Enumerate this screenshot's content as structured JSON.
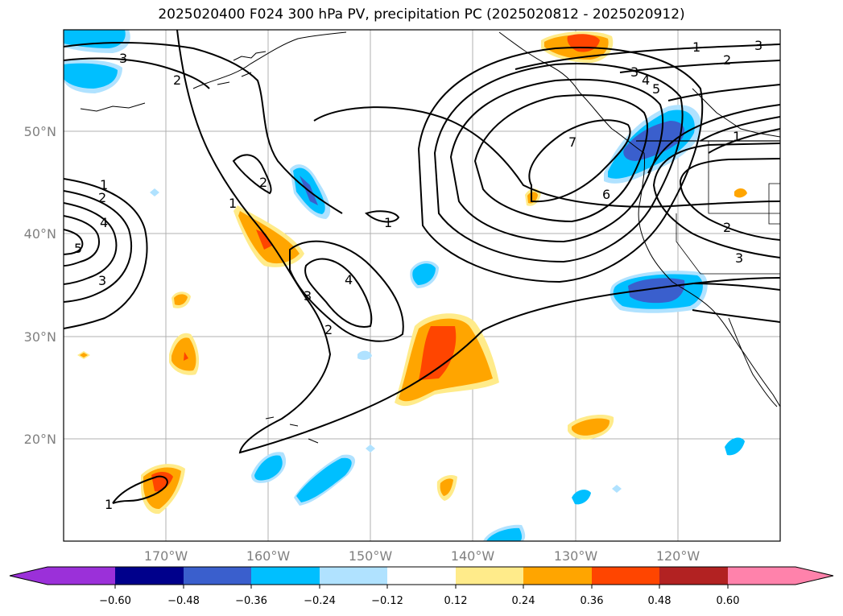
{
  "title": "2025020400 F024 300 hPa PV, precipitation PC (2025020812 - 2025020912)",
  "map": {
    "lat_labels": [
      "50°N",
      "40°N",
      "30°N",
      "20°N"
    ],
    "lon_labels": [
      "170°W",
      "160°W",
      "150°W",
      "140°W",
      "130°W",
      "120°W"
    ],
    "contour_labels": [
      "3",
      "3",
      "2",
      "1",
      "2",
      "4",
      "5",
      "3",
      "1",
      "2",
      "4",
      "3",
      "2",
      "1",
      "1",
      "2",
      "3",
      "4",
      "5",
      "6",
      "7",
      "1",
      "2",
      "3",
      "3",
      "1"
    ],
    "colors": {
      "neg_extreme": "#9b30d9",
      "neg_060": "#00008b",
      "neg_048": "#3a5fcd",
      "neg_036": "#00bfff",
      "neg_024": "#b0e2ff",
      "neutral": "#ffffff",
      "pos_012": "#ffeb8a",
      "pos_024": "#ffa500",
      "pos_036": "#ff4500",
      "pos_048": "#b22222",
      "pos_060": "#ff82ab"
    }
  },
  "colorbar": {
    "tick_labels": [
      "−0.60",
      "−0.48",
      "−0.36",
      "−0.24",
      "−0.12",
      "0.12",
      "0.24",
      "0.36",
      "0.48",
      "0.60"
    ]
  }
}
